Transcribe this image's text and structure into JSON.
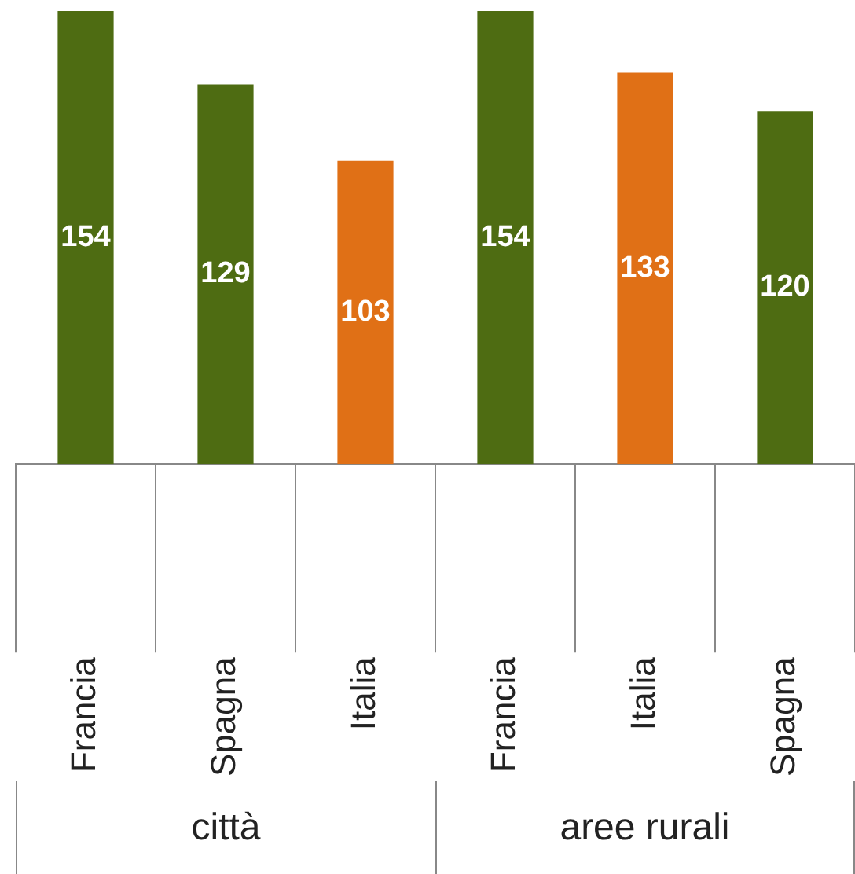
{
  "chart_data": {
    "type": "bar",
    "categories": [
      "Francia",
      "Spagna",
      "Italia",
      "Francia",
      "Italia",
      "Spagna"
    ],
    "values": [
      154,
      129,
      103,
      154,
      133,
      120
    ],
    "colors": [
      "#4e6c12",
      "#4e6c12",
      "#e07016",
      "#4e6c12",
      "#e07016",
      "#4e6c12"
    ],
    "ylim": [
      0,
      154
    ],
    "tick_labels": "x",
    "data_labels": true,
    "legend": false,
    "grid": false,
    "annotations": [
      "città",
      "aree rurali"
    ]
  }
}
